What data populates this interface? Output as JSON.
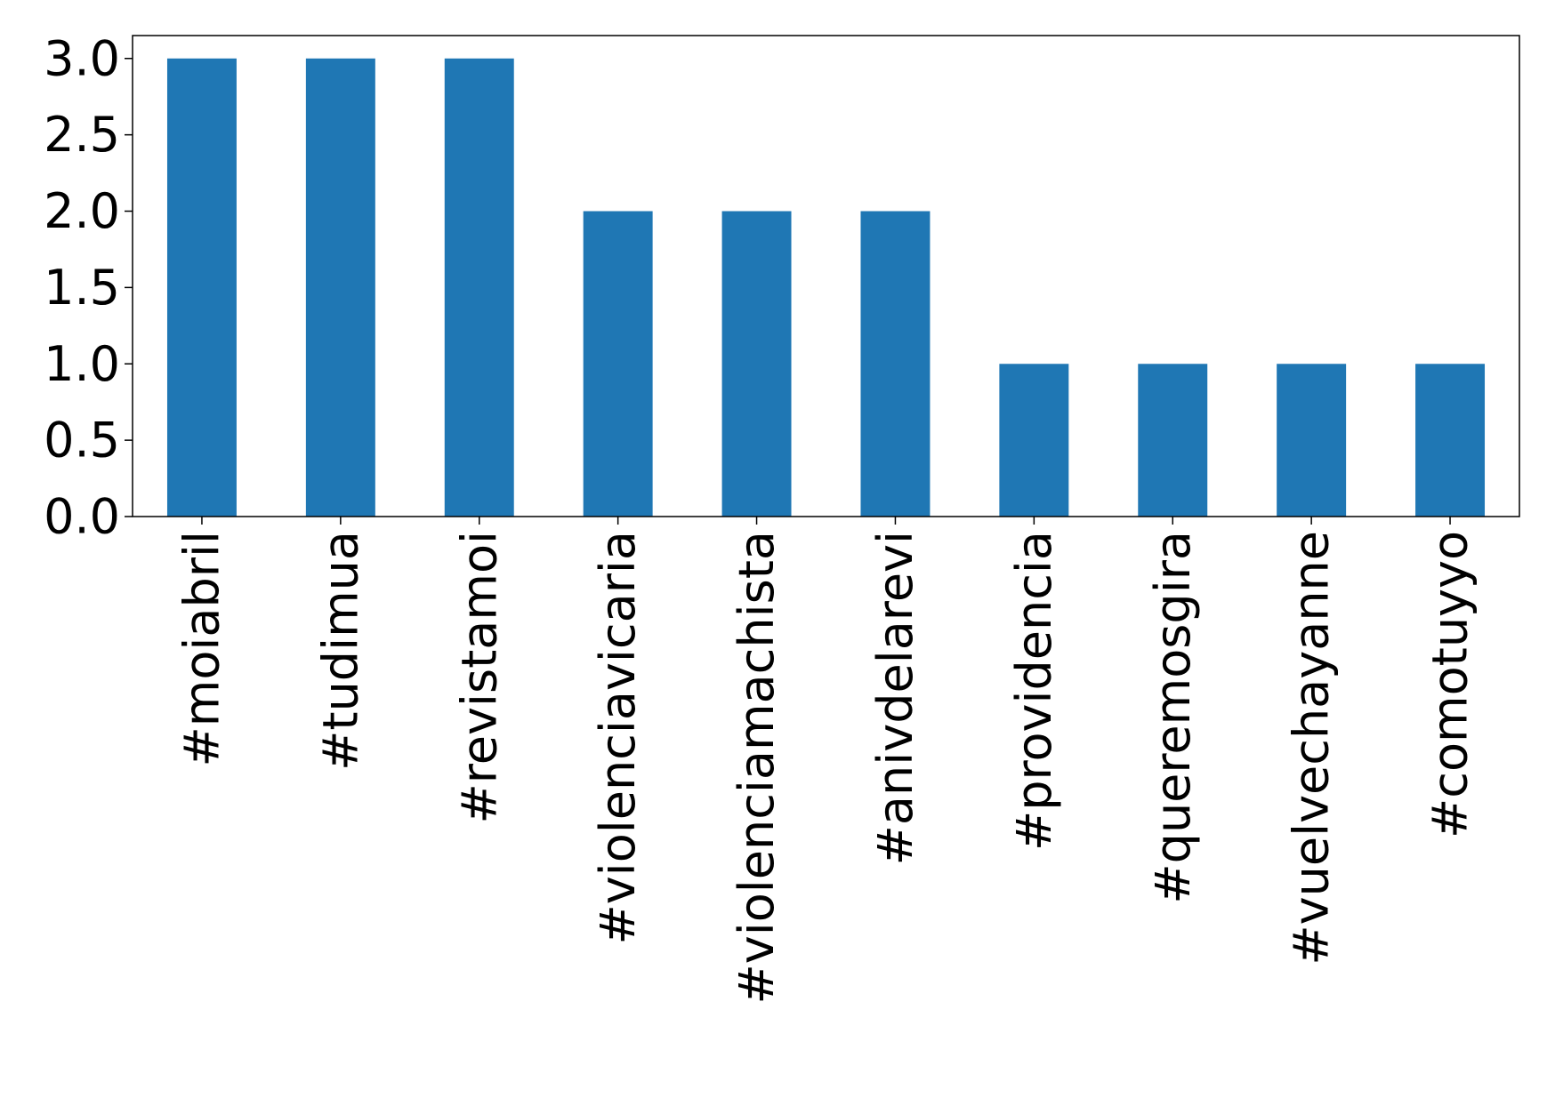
{
  "chart_data": {
    "type": "bar",
    "categories": [
      "#moiabril",
      "#tudimua",
      "#revistamoi",
      "#violenciavicaria",
      "#violenciamachista",
      "#anivdelarevi",
      "#providencia",
      "#queremosgira",
      "#vuelvechayanne",
      "#comotuyyo"
    ],
    "values": [
      3,
      3,
      3,
      2,
      2,
      2,
      1,
      1,
      1,
      1
    ],
    "color": "#1f77b4",
    "ylim": [
      0,
      3.15
    ],
    "yticks": [
      {
        "value": 0,
        "label": "0.0"
      },
      {
        "value": 0.5,
        "label": "0.5"
      },
      {
        "value": 1,
        "label": "1.0"
      },
      {
        "value": 1.5,
        "label": "1.5"
      },
      {
        "value": 2,
        "label": "2.0"
      },
      {
        "value": 2.5,
        "label": "2.5"
      },
      {
        "value": 3,
        "label": "3.0"
      }
    ],
    "grid": false
  }
}
